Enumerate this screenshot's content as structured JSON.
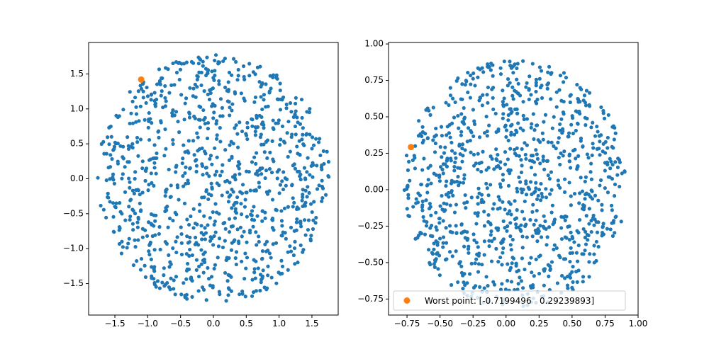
{
  "chart_data": [
    {
      "type": "scatter",
      "xlim": [
        -1.9,
        1.9
      ],
      "ylim": [
        -1.95,
        1.95
      ],
      "xticks": [
        -1.5,
        -1.0,
        -0.5,
        0.0,
        0.5,
        1.0,
        1.5
      ],
      "xtick_labels": [
        "−1.5",
        "−1.0",
        "−0.5",
        "0.0",
        "0.5",
        "1.0",
        "1.5"
      ],
      "yticks": [
        -1.5,
        -1.0,
        -0.5,
        0.0,
        0.5,
        1.0,
        1.5
      ],
      "ytick_labels": [
        "−1.5",
        "−1.0",
        "−0.5",
        "0.0",
        "0.5",
        "1.0",
        "1.5"
      ],
      "grid": false,
      "series": [
        {
          "role": "sample points",
          "color": "#1f77b4",
          "distribution": "uniform in disk",
          "center": [
            0,
            0
          ],
          "radius": 1.78,
          "count": 1000
        },
        {
          "role": "highlighted point",
          "color": "#ff7f0e",
          "x": [
            -1.1
          ],
          "y": [
            1.42
          ]
        }
      ]
    },
    {
      "type": "scatter",
      "xlim": [
        -0.89,
        1.0
      ],
      "ylim": [
        -0.86,
        1.01
      ],
      "xticks": [
        -0.75,
        -0.5,
        -0.25,
        0.0,
        0.25,
        0.5,
        0.75,
        1.0
      ],
      "xtick_labels": [
        "−0.75",
        "−0.50",
        "−0.25",
        "0.00",
        "0.25",
        "0.50",
        "0.75",
        "1.00"
      ],
      "yticks": [
        -0.75,
        -0.5,
        -0.25,
        0.0,
        0.25,
        0.5,
        0.75,
        1.0
      ],
      "ytick_labels": [
        "−0.75",
        "−0.50",
        "−0.25",
        "0.00",
        "0.25",
        "0.50",
        "0.75",
        "1.00"
      ],
      "grid": false,
      "legend": {
        "position": "lower right",
        "label": "Worst point: [-0.7199496   0.29239893]"
      },
      "series": [
        {
          "role": "sample points",
          "color": "#1f77b4",
          "distribution": "uniform in disk",
          "center": [
            0.07,
            0.04
          ],
          "radius": 0.85,
          "count": 1000
        },
        {
          "role": "worst point",
          "name": "Worst point: [-0.7199496   0.29239893]",
          "color": "#ff7f0e",
          "x": [
            -0.7199496
          ],
          "y": [
            0.29239893
          ]
        }
      ]
    }
  ]
}
